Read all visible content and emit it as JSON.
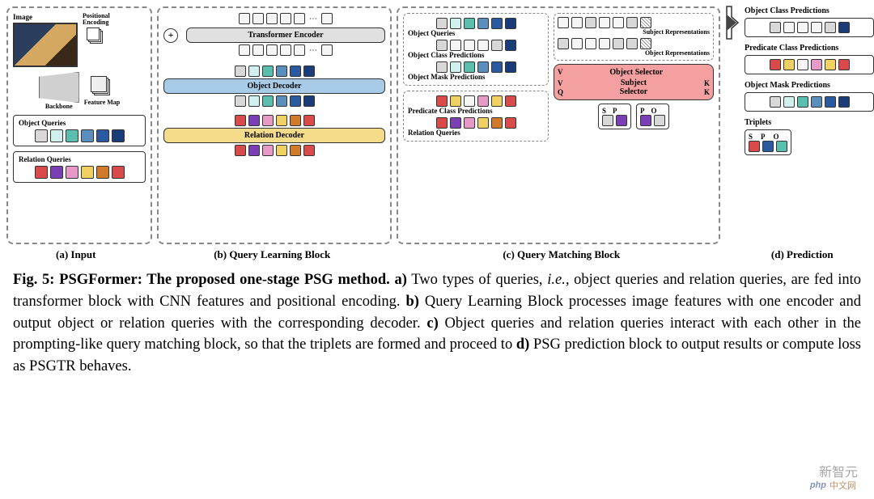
{
  "figure": {
    "panel_a_label": "(a) Input",
    "panel_b_label": "(b) Query Learning Block",
    "panel_c_label": "(c) Query Matching Block",
    "panel_d_label": "(d) Prediction",
    "image_label": "Image",
    "pos_enc_label": "Positional\nEncoding",
    "backbone_label": "Backbone",
    "feature_map_label": "Feature Map",
    "object_queries_label": "Object Queries",
    "relation_queries_label": "Relation Queries",
    "transformer_encoder": "Transformer Encoder",
    "object_decoder": "Object Decoder",
    "relation_decoder": "Relation Decoder",
    "obj_queries_c": "Object Queries",
    "obj_class_pred_c": "Object Class Predictions",
    "obj_mask_pred_c": "Object Mask Predictions",
    "pred_class_c": "Predicate Class Predictions",
    "relation_queries_c": "Relation Queries",
    "subj_repr": "Subject Representations",
    "obj_repr": "Object Representations",
    "object_selector": "Object Selector",
    "subject_selector": "Subject\nSelector",
    "V": "V",
    "K": "K",
    "Q": "Q",
    "S": "S",
    "P": "P",
    "O": "O",
    "obj_class_pred_d": "Object Class Predictions",
    "pred_class_d": "Predicate Class Predictions",
    "obj_mask_pred_d": "Object Mask Predictions",
    "triplets_d": "Triplets"
  },
  "colors": {
    "object_queries": [
      "#d8d8d8",
      "#d0f0ee",
      "#5bbfb0",
      "#5a8fbd",
      "#2c5aa0",
      "#1a3d7a"
    ],
    "relation_queries": [
      "#d94a4a",
      "#7a3fb5",
      "#e89ac7",
      "#f0d060",
      "#d07a2a",
      "#d94a4a"
    ],
    "encoder_top": [
      "#f5f5f5",
      "#f5f5f5",
      "#f5f5f5",
      "#f5f5f5",
      "#f5f5f5",
      "#f5f5f5"
    ],
    "encoder_fill": "#e0e0e0",
    "object_decoder_fill": "#a8cce8",
    "relation_decoder_fill": "#f5dc8a",
    "obj_class_c": [
      "#d8d8d8",
      "#f5f5f5",
      "#f5f5f5",
      "#f5f5f5",
      "#d8d8d8",
      "#1a3d7a"
    ],
    "obj_mask_c": [
      "#d8d8d8",
      "#d0f0ee",
      "#5bbfb0",
      "#5a8fbd",
      "#2c5aa0",
      "#1a3d7a"
    ],
    "subj_repr": [
      "#f5f5f5",
      "#f5f5f5",
      "#d8d8d8",
      "#f5f5f5",
      "#f5f5f5",
      "#d8d8d8"
    ],
    "obj_repr_tokens": [
      "#d8d8d8",
      "#f5f5f5",
      "#f5f5f5",
      "#f5f5f5",
      "#d8d8d8",
      "#d8d8d8"
    ],
    "pred_class_d": [
      "#d94a4a",
      "#f0d060",
      "#f5f5f5",
      "#e89ac7",
      "#f0d060",
      "#d94a4a"
    ],
    "triplet_sp1": [
      "#d8d8d8",
      "#7a3fb5"
    ],
    "triplet_po": [
      "#7a3fb5",
      "#d8d8d8"
    ],
    "triplet_spo": [
      "#d94a4a",
      "#2c5aa0",
      "#5bbfb0"
    ],
    "selector_bg": "#f5a0a0",
    "hatch": "repeating-linear-gradient(45deg,#fff,#fff 2px,#888 2px,#888 3px)"
  },
  "caption": {
    "fig_label": "Fig. 5: PSGFormer: The proposed one-stage PSG method.",
    "text_a_bold": "a)",
    "text_a": " Two types of queries, ",
    "ie": "i.e.",
    "text_a2": ", object queries and relation queries, are fed into transformer block with CNN features and positional encoding. ",
    "text_b_bold": "b)",
    "text_b": " Query Learning Block processes image features with one encoder and output object or relation queries with the corresponding decoder. ",
    "text_c_bold": "c)",
    "text_c": " Object queries and relation queries interact with each other in the prompting-like query matching block, so that the triplets are formed and proceed to ",
    "text_d_bold": "d)",
    "text_d": " PSG prediction block to output results or compute loss as PSGTR behaves."
  },
  "watermark": {
    "main": "新智元",
    "sub": "中文网",
    "php": "php"
  }
}
